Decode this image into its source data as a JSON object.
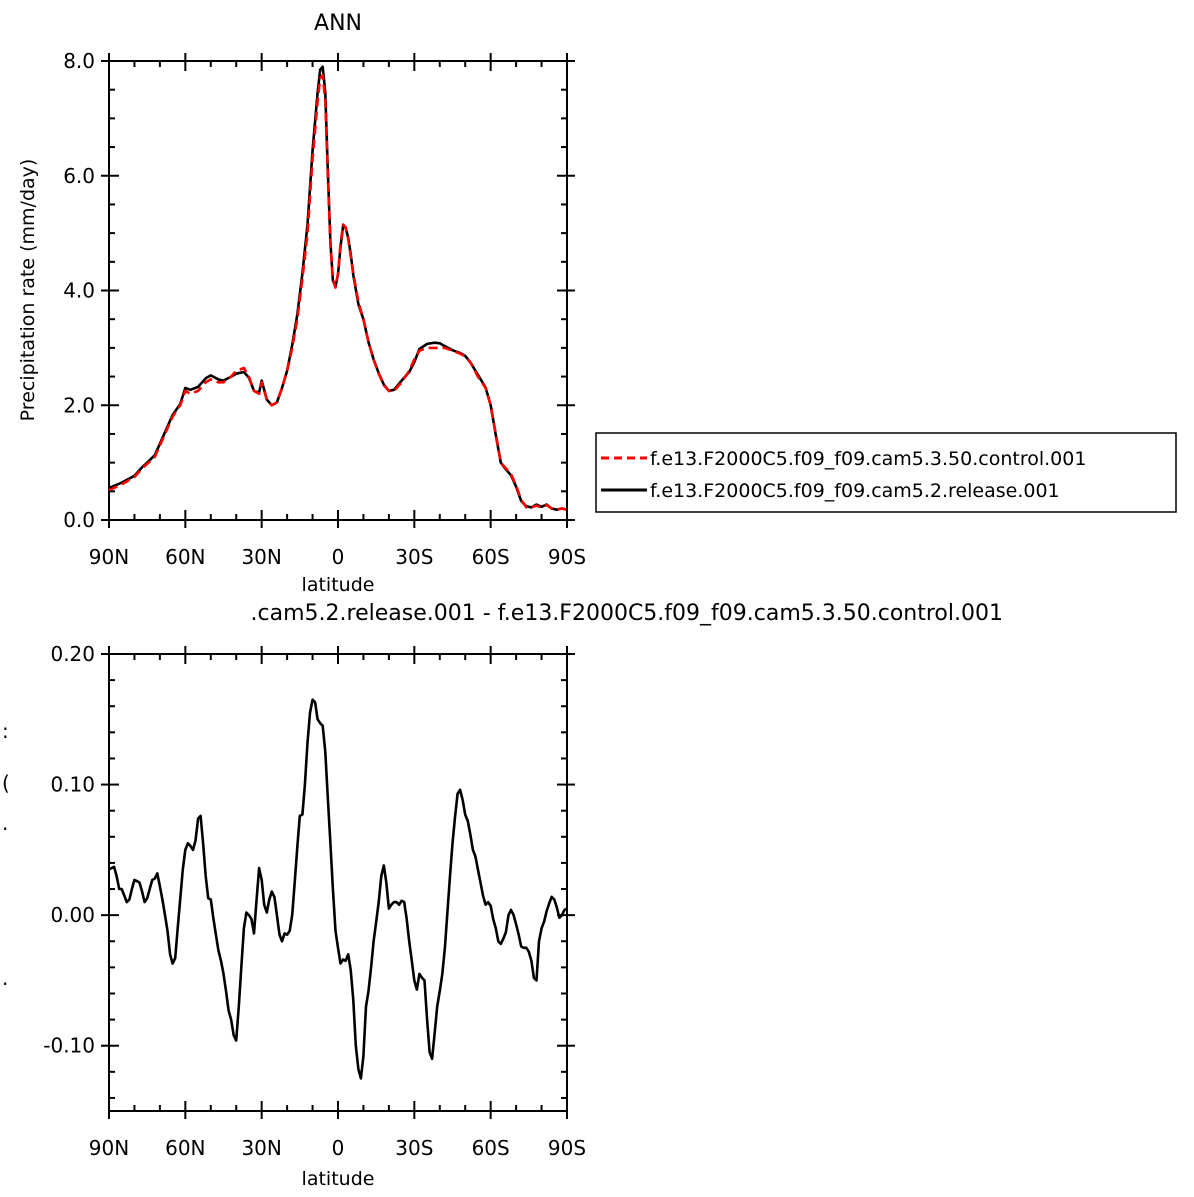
{
  "chart_data": [
    {
      "type": "line",
      "title": "ANN",
      "xlabel": "latitude",
      "ylabel": "Precipitation rate (mm/day)",
      "ylim": [
        0,
        8
      ],
      "xlim": [
        90,
        -90
      ],
      "x_tick_labels": [
        "90N",
        "60N",
        "30N",
        "0",
        "30S",
        "60S",
        "90S"
      ],
      "x_tick_values": [
        90,
        60,
        30,
        0,
        -30,
        -60,
        -90
      ],
      "y_tick_labels": [
        "0.0",
        "2.0",
        "4.0",
        "6.0",
        "8.0"
      ],
      "y_tick_values": [
        0,
        2,
        4,
        6,
        8
      ],
      "legend_placement": "outside-right",
      "series": [
        {
          "name": "f.e13.F2000C5.f09_f09.cam5.3.50.control.001",
          "color": "#ff0000",
          "dash": "dashed",
          "x": [
            90,
            85,
            80,
            77,
            75,
            72,
            70,
            67,
            65,
            62,
            60,
            58,
            55,
            52,
            50,
            47,
            45,
            42,
            40,
            37,
            35,
            33,
            31,
            30,
            28,
            26,
            24,
            22,
            20,
            18,
            16,
            14,
            12,
            10,
            8,
            7,
            6,
            5,
            4,
            3,
            2,
            1,
            0,
            -1,
            -2,
            -3,
            -4,
            -5,
            -6,
            -8,
            -10,
            -12,
            -14,
            -16,
            -18,
            -20,
            -22,
            -25,
            -28,
            -30,
            -32,
            -35,
            -38,
            -40,
            -42,
            -45,
            -48,
            -50,
            -52,
            -55,
            -58,
            -60,
            -62,
            -64,
            -66,
            -68,
            -70,
            -72,
            -74,
            -76,
            -78,
            -80,
            -82,
            -84,
            -86,
            -88,
            -90
          ],
          "y": [
            0.52,
            0.62,
            0.75,
            0.9,
            0.98,
            1.1,
            1.3,
            1.6,
            1.8,
            2.0,
            2.25,
            2.2,
            2.25,
            2.4,
            2.45,
            2.4,
            2.4,
            2.5,
            2.6,
            2.65,
            2.5,
            2.25,
            2.2,
            2.4,
            2.1,
            2.0,
            2.05,
            2.3,
            2.6,
            3.0,
            3.5,
            4.2,
            5.0,
            6.3,
            7.3,
            7.7,
            7.75,
            7.3,
            6.0,
            4.8,
            4.2,
            4.05,
            4.3,
            4.8,
            5.15,
            5.1,
            4.9,
            4.6,
            4.3,
            3.8,
            3.5,
            3.1,
            2.8,
            2.55,
            2.35,
            2.25,
            2.25,
            2.4,
            2.6,
            2.8,
            2.95,
            3.0,
            3.0,
            3.0,
            3.0,
            2.95,
            2.9,
            2.85,
            2.75,
            2.5,
            2.3,
            2.0,
            1.5,
            1.0,
            0.9,
            0.8,
            0.6,
            0.35,
            0.22,
            0.22,
            0.25,
            0.22,
            0.26,
            0.2,
            0.18,
            0.2,
            0.18
          ]
        },
        {
          "name": "f.e13.F2000C5.f09_f09.cam5.2.release.001",
          "color": "#000000",
          "dash": "solid",
          "x": [
            90,
            85,
            80,
            77,
            75,
            72,
            70,
            67,
            65,
            62,
            60,
            58,
            55,
            52,
            50,
            47,
            45,
            42,
            40,
            37,
            35,
            33,
            31,
            30,
            28,
            26,
            24,
            22,
            20,
            18,
            16,
            14,
            12,
            10,
            8,
            7,
            6,
            5,
            4,
            3,
            2,
            1,
            0,
            -1,
            -2,
            -3,
            -4,
            -5,
            -6,
            -8,
            -10,
            -12,
            -14,
            -16,
            -18,
            -20,
            -22,
            -25,
            -28,
            -30,
            -32,
            -35,
            -38,
            -40,
            -42,
            -45,
            -48,
            -50,
            -52,
            -55,
            -58,
            -60,
            -62,
            -64,
            -66,
            -68,
            -70,
            -72,
            -74,
            -76,
            -78,
            -80,
            -82,
            -84,
            -86,
            -88,
            -90
          ],
          "y": [
            0.56,
            0.65,
            0.77,
            0.92,
            1.0,
            1.13,
            1.33,
            1.63,
            1.83,
            2.02,
            2.3,
            2.27,
            2.32,
            2.47,
            2.52,
            2.45,
            2.43,
            2.5,
            2.55,
            2.58,
            2.48,
            2.25,
            2.22,
            2.43,
            2.1,
            2.0,
            2.05,
            2.3,
            2.6,
            3.05,
            3.58,
            4.3,
            5.15,
            6.45,
            7.45,
            7.85,
            7.9,
            7.45,
            6.1,
            4.85,
            4.17,
            4.07,
            4.28,
            4.76,
            5.12,
            5.1,
            4.92,
            4.64,
            4.27,
            3.76,
            3.5,
            3.1,
            2.8,
            2.56,
            2.36,
            2.25,
            2.27,
            2.43,
            2.58,
            2.75,
            2.98,
            3.07,
            3.09,
            3.08,
            3.03,
            2.96,
            2.91,
            2.86,
            2.75,
            2.53,
            2.31,
            2.0,
            1.48,
            1.0,
            0.88,
            0.78,
            0.58,
            0.33,
            0.24,
            0.22,
            0.27,
            0.23,
            0.27,
            0.2,
            0.18,
            0.2,
            0.18
          ]
        }
      ]
    },
    {
      "type": "line",
      "title": ".cam5.2.release.001 - f.e13.F2000C5.f09_f09.cam5.3.50.control.001",
      "xlabel": "latitude",
      "ylabel": "",
      "ylim": [
        -0.15,
        0.2
      ],
      "xlim": [
        90,
        -90
      ],
      "x_tick_labels": [
        "90N",
        "60N",
        "30N",
        "0",
        "30S",
        "60S",
        "90S"
      ],
      "x_tick_values": [
        90,
        60,
        30,
        0,
        -30,
        -60,
        -90
      ],
      "y_tick_labels": [
        "-0.10",
        "0.00",
        "0.10",
        "0.20"
      ],
      "y_tick_values": [
        -0.1,
        0.0,
        0.1,
        0.2
      ],
      "series": [
        {
          "color": "#000000",
          "dash": "solid",
          "x": [
            90,
            88,
            87,
            86,
            85,
            84,
            83,
            82,
            81,
            80,
            79,
            78,
            77,
            76,
            75,
            74,
            73,
            72,
            71,
            70,
            69,
            68,
            67,
            66,
            65,
            64,
            63,
            62,
            61,
            60,
            59,
            58,
            57,
            56,
            55,
            54,
            53,
            52,
            51,
            50,
            49,
            48,
            47,
            46,
            45,
            44,
            43,
            42,
            41,
            40,
            39,
            38,
            37,
            36,
            35,
            34,
            33,
            32,
            31,
            30,
            29,
            28,
            27,
            26,
            25,
            24,
            23,
            22,
            21,
            20,
            19,
            18,
            17,
            16,
            15,
            14,
            13,
            12,
            11,
            10,
            9,
            8,
            7,
            6,
            5,
            4,
            3,
            2,
            1,
            0,
            -1,
            -2,
            -3,
            -4,
            -5,
            -6,
            -7,
            -8,
            -9,
            -10,
            -11,
            -12,
            -13,
            -14,
            -15,
            -16,
            -17,
            -18,
            -19,
            -20,
            -21,
            -22,
            -23,
            -24,
            -25,
            -26,
            -27,
            -28,
            -29,
            -30,
            -31,
            -32,
            -33,
            -34,
            -35,
            -36,
            -37,
            -38,
            -39,
            -40,
            -41,
            -42,
            -43,
            -44,
            -45,
            -46,
            -47,
            -48,
            -49,
            -50,
            -51,
            -52,
            -53,
            -54,
            -55,
            -56,
            -57,
            -58,
            -59,
            -60,
            -61,
            -62,
            -63,
            -64,
            -65,
            -66,
            -67,
            -68,
            -69,
            -70,
            -71,
            -72,
            -73,
            -74,
            -75,
            -76,
            -77,
            -78,
            -79,
            -80,
            -81,
            -82,
            -83,
            -84,
            -85,
            -86,
            -87,
            -88,
            -89,
            -90
          ],
          "y": [
            0.035,
            0.037,
            0.03,
            0.02,
            0.02,
            0.015,
            0.01,
            0.012,
            0.02,
            0.027,
            0.026,
            0.025,
            0.018,
            0.01,
            0.013,
            0.02,
            0.027,
            0.028,
            0.032,
            0.022,
            0.012,
            0.0,
            -0.012,
            -0.03,
            -0.037,
            -0.033,
            -0.01,
            0.012,
            0.035,
            0.05,
            0.055,
            0.053,
            0.05,
            0.057,
            0.074,
            0.076,
            0.055,
            0.03,
            0.013,
            0.012,
            -0.002,
            -0.015,
            -0.027,
            -0.035,
            -0.045,
            -0.058,
            -0.073,
            -0.08,
            -0.092,
            -0.096,
            -0.07,
            -0.04,
            -0.01,
            0.002,
            0.0,
            -0.003,
            -0.014,
            0.012,
            0.036,
            0.027,
            0.008,
            0.002,
            0.012,
            0.018,
            0.014,
            0.0,
            -0.015,
            -0.02,
            -0.014,
            -0.015,
            -0.012,
            0.0,
            0.025,
            0.052,
            0.076,
            0.077,
            0.1,
            0.132,
            0.155,
            0.165,
            0.163,
            0.15,
            0.147,
            0.145,
            0.125,
            0.09,
            0.055,
            0.02,
            -0.012,
            -0.025,
            -0.037,
            -0.034,
            -0.035,
            -0.03,
            -0.042,
            -0.065,
            -0.1,
            -0.118,
            -0.125,
            -0.108,
            -0.07,
            -0.058,
            -0.04,
            -0.02,
            -0.005,
            0.01,
            0.03,
            0.038,
            0.025,
            0.005,
            0.008,
            0.01,
            0.01,
            0.008,
            0.011,
            0.01,
            -0.003,
            -0.02,
            -0.035,
            -0.05,
            -0.057,
            -0.045,
            -0.048,
            -0.05,
            -0.08,
            -0.105,
            -0.11,
            -0.09,
            -0.07,
            -0.058,
            -0.045,
            -0.025,
            0.002,
            0.03,
            0.055,
            0.075,
            0.093,
            0.096,
            0.088,
            0.077,
            0.072,
            0.062,
            0.05,
            0.045,
            0.035,
            0.025,
            0.015,
            0.008,
            0.01,
            0.007,
            -0.003,
            -0.01,
            -0.02,
            -0.022,
            -0.018,
            -0.013,
            0.0,
            0.004,
            0.0,
            -0.007,
            -0.015,
            -0.024,
            -0.025,
            -0.025,
            -0.028,
            -0.035,
            -0.048,
            -0.05,
            -0.02,
            -0.01,
            -0.005,
            0.003,
            0.009,
            0.014,
            0.012,
            0.006,
            -0.002,
            0.0,
            0.004,
            0.005
          ]
        }
      ]
    }
  ],
  "side_glyphs": [
    ":",
    "(",
    ".",
    "."
  ]
}
